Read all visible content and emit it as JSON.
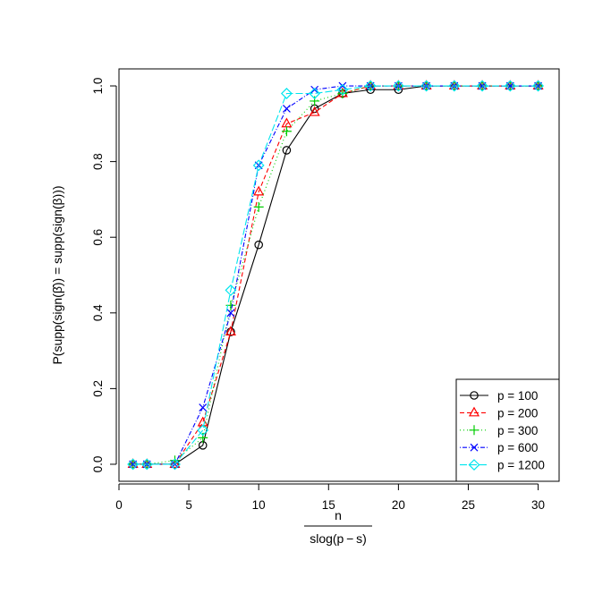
{
  "chart_data": {
    "type": "line",
    "title": "",
    "xlabel": {
      "numerator": "n",
      "denominator": "slog(p − s)"
    },
    "ylabel": "P(supp(sign(β̂)) = supp(sign(β)))",
    "xlim": [
      0,
      31.5
    ],
    "ylim": [
      -0.045,
      1.045
    ],
    "xticks": [
      0,
      5,
      10,
      15,
      20,
      25,
      30
    ],
    "yticks": [
      0.0,
      0.2,
      0.4,
      0.6,
      0.8,
      1.0
    ],
    "xtick_labels": [
      "0",
      "5",
      "10",
      "15",
      "20",
      "25",
      "30"
    ],
    "ytick_labels": [
      "0.0",
      "0.2",
      "0.4",
      "0.6",
      "0.8",
      "1.0"
    ],
    "grid": false,
    "legend_position": "bottom-right",
    "x": [
      1,
      2,
      4,
      6,
      8,
      10,
      12,
      14,
      16,
      18,
      20,
      22,
      24,
      26,
      28,
      30
    ],
    "series": [
      {
        "name": "p = 100",
        "color": "#000000",
        "marker": "circle",
        "dash": "",
        "values": [
          0.0,
          0.0,
          0.0,
          0.05,
          0.35,
          0.58,
          0.83,
          0.94,
          0.98,
          0.99,
          0.99,
          1.0,
          1.0,
          1.0,
          1.0,
          1.0
        ]
      },
      {
        "name": "p = 200",
        "color": "#ff0000",
        "marker": "triangle",
        "dash": "5,3",
        "values": [
          0.0,
          0.0,
          0.0,
          0.11,
          0.35,
          0.72,
          0.9,
          0.93,
          0.98,
          1.0,
          1.0,
          1.0,
          1.0,
          1.0,
          1.0,
          1.0
        ]
      },
      {
        "name": "p = 300",
        "color": "#00cd00",
        "marker": "plus",
        "dash": "1,3",
        "values": [
          0.0,
          0.0,
          0.01,
          0.07,
          0.42,
          0.68,
          0.88,
          0.96,
          0.98,
          1.0,
          1.0,
          1.0,
          1.0,
          1.0,
          1.0,
          1.0
        ]
      },
      {
        "name": "p = 600",
        "color": "#0000ff",
        "marker": "cross",
        "dash": "1,2,5,2",
        "values": [
          0.0,
          0.0,
          0.0,
          0.15,
          0.4,
          0.79,
          0.94,
          0.99,
          1.0,
          1.0,
          1.0,
          1.0,
          1.0,
          1.0,
          1.0,
          1.0
        ]
      },
      {
        "name": "p = 1200",
        "color": "#00e5ee",
        "marker": "diamond",
        "dash": "8,3",
        "values": [
          0.0,
          0.0,
          0.0,
          0.09,
          0.46,
          0.79,
          0.98,
          0.98,
          0.99,
          1.0,
          1.0,
          1.0,
          1.0,
          1.0,
          1.0,
          1.0
        ]
      }
    ]
  }
}
